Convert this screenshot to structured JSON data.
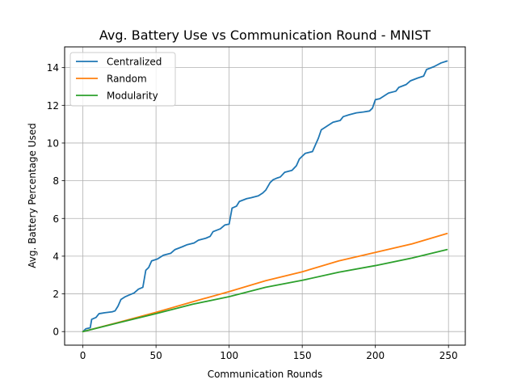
{
  "chart_data": {
    "type": "line",
    "title": "Avg. Battery Use vs Communication Round - MNIST",
    "xlabel": "Communication Rounds",
    "ylabel": "Avg. Battery Percentage Used",
    "xlim": [
      -12.5,
      261.5
    ],
    "ylim": [
      -0.72,
      15.1
    ],
    "xticks": [
      0,
      50,
      100,
      150,
      200,
      250
    ],
    "yticks": [
      0,
      2,
      4,
      6,
      8,
      10,
      12,
      14
    ],
    "grid": true,
    "legend": "top-left",
    "series": [
      {
        "name": "Centralized",
        "color": "#1f77b4",
        "points": [
          [
            0,
            0
          ],
          [
            2,
            0.15
          ],
          [
            5,
            0.2
          ],
          [
            6,
            0.65
          ],
          [
            9,
            0.75
          ],
          [
            11,
            0.95
          ],
          [
            15,
            1.0
          ],
          [
            20,
            1.05
          ],
          [
            22,
            1.1
          ],
          [
            24,
            1.35
          ],
          [
            26,
            1.7
          ],
          [
            29,
            1.85
          ],
          [
            32,
            1.95
          ],
          [
            35,
            2.05
          ],
          [
            38,
            2.25
          ],
          [
            41,
            2.35
          ],
          [
            43,
            3.25
          ],
          [
            45,
            3.4
          ],
          [
            47,
            3.75
          ],
          [
            51,
            3.85
          ],
          [
            55,
            4.05
          ],
          [
            60,
            4.15
          ],
          [
            63,
            4.35
          ],
          [
            68,
            4.5
          ],
          [
            71,
            4.6
          ],
          [
            76,
            4.7
          ],
          [
            79,
            4.85
          ],
          [
            84,
            4.95
          ],
          [
            87,
            5.05
          ],
          [
            89,
            5.3
          ],
          [
            94,
            5.45
          ],
          [
            97,
            5.65
          ],
          [
            100,
            5.7
          ],
          [
            102,
            6.55
          ],
          [
            105,
            6.65
          ],
          [
            107,
            6.9
          ],
          [
            112,
            7.05
          ],
          [
            115,
            7.1
          ],
          [
            120,
            7.2
          ],
          [
            123,
            7.35
          ],
          [
            125,
            7.5
          ],
          [
            128,
            7.9
          ],
          [
            130,
            8.05
          ],
          [
            133,
            8.15
          ],
          [
            135,
            8.2
          ],
          [
            138,
            8.45
          ],
          [
            143,
            8.55
          ],
          [
            146,
            8.8
          ],
          [
            148,
            9.15
          ],
          [
            150,
            9.3
          ],
          [
            152,
            9.45
          ],
          [
            157,
            9.55
          ],
          [
            159,
            9.9
          ],
          [
            161,
            10.25
          ],
          [
            163,
            10.7
          ],
          [
            166,
            10.85
          ],
          [
            168,
            10.95
          ],
          [
            171,
            11.1
          ],
          [
            176,
            11.2
          ],
          [
            178,
            11.4
          ],
          [
            182,
            11.5
          ],
          [
            187,
            11.6
          ],
          [
            192,
            11.65
          ],
          [
            196,
            11.7
          ],
          [
            198,
            11.85
          ],
          [
            200,
            12.3
          ],
          [
            203,
            12.35
          ],
          [
            206,
            12.5
          ],
          [
            209,
            12.65
          ],
          [
            214,
            12.75
          ],
          [
            216,
            12.95
          ],
          [
            221,
            13.1
          ],
          [
            224,
            13.3
          ],
          [
            229,
            13.45
          ],
          [
            233,
            13.55
          ],
          [
            235,
            13.9
          ],
          [
            240,
            14.05
          ],
          [
            245,
            14.25
          ],
          [
            249,
            14.35
          ]
        ]
      },
      {
        "name": "Random",
        "color": "#ff7f0e",
        "points": [
          [
            0,
            0
          ],
          [
            25,
            0.5
          ],
          [
            50,
            1.02
          ],
          [
            75,
            1.58
          ],
          [
            100,
            2.12
          ],
          [
            125,
            2.7
          ],
          [
            150,
            3.17
          ],
          [
            175,
            3.75
          ],
          [
            200,
            4.2
          ],
          [
            225,
            4.65
          ],
          [
            249,
            5.2
          ]
        ]
      },
      {
        "name": "Modularity",
        "color": "#2ca02c",
        "points": [
          [
            0,
            0
          ],
          [
            25,
            0.48
          ],
          [
            50,
            0.95
          ],
          [
            75,
            1.45
          ],
          [
            100,
            1.85
          ],
          [
            125,
            2.35
          ],
          [
            150,
            2.72
          ],
          [
            175,
            3.15
          ],
          [
            200,
            3.5
          ],
          [
            225,
            3.9
          ],
          [
            249,
            4.35
          ]
        ]
      }
    ]
  }
}
